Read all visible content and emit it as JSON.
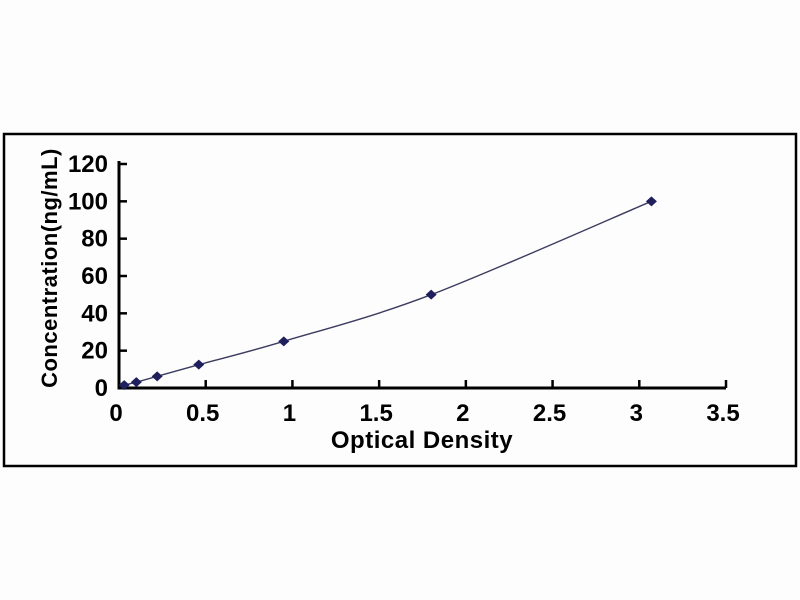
{
  "page": {
    "background": "#fdfdfd",
    "frame_color": "#000000",
    "axis_color": "#000000",
    "text_color": "#000000"
  },
  "chart_data": {
    "type": "line",
    "title": "",
    "xlabel": "Optical Density",
    "ylabel": "Concentration(ng/mL)",
    "x": [
      0.03,
      0.1,
      0.22,
      0.46,
      0.95,
      1.8,
      3.07
    ],
    "y": [
      1.56,
      3.13,
      6.25,
      12.5,
      25,
      50,
      100
    ],
    "xlim": [
      0,
      3.5
    ],
    "ylim": [
      0,
      120
    ],
    "x_ticks": [
      0,
      0.5,
      1,
      1.5,
      2,
      2.5,
      3,
      3.5
    ],
    "x_tick_labels": [
      "0",
      "0.5",
      "1",
      "1.5",
      "2",
      "2.5",
      "3",
      "3.5"
    ],
    "y_ticks": [
      0,
      20,
      40,
      60,
      80,
      100,
      120
    ],
    "y_tick_labels": [
      "0",
      "20",
      "40",
      "60",
      "80",
      "100",
      "120"
    ],
    "grid": false,
    "legend": "none",
    "marker": {
      "shape": "diamond",
      "color": "#1f1f5e",
      "half_width": 5.5,
      "half_height": 5
    },
    "line": {
      "color": "#3c3c60",
      "width": 1.4,
      "smooth": true
    }
  }
}
